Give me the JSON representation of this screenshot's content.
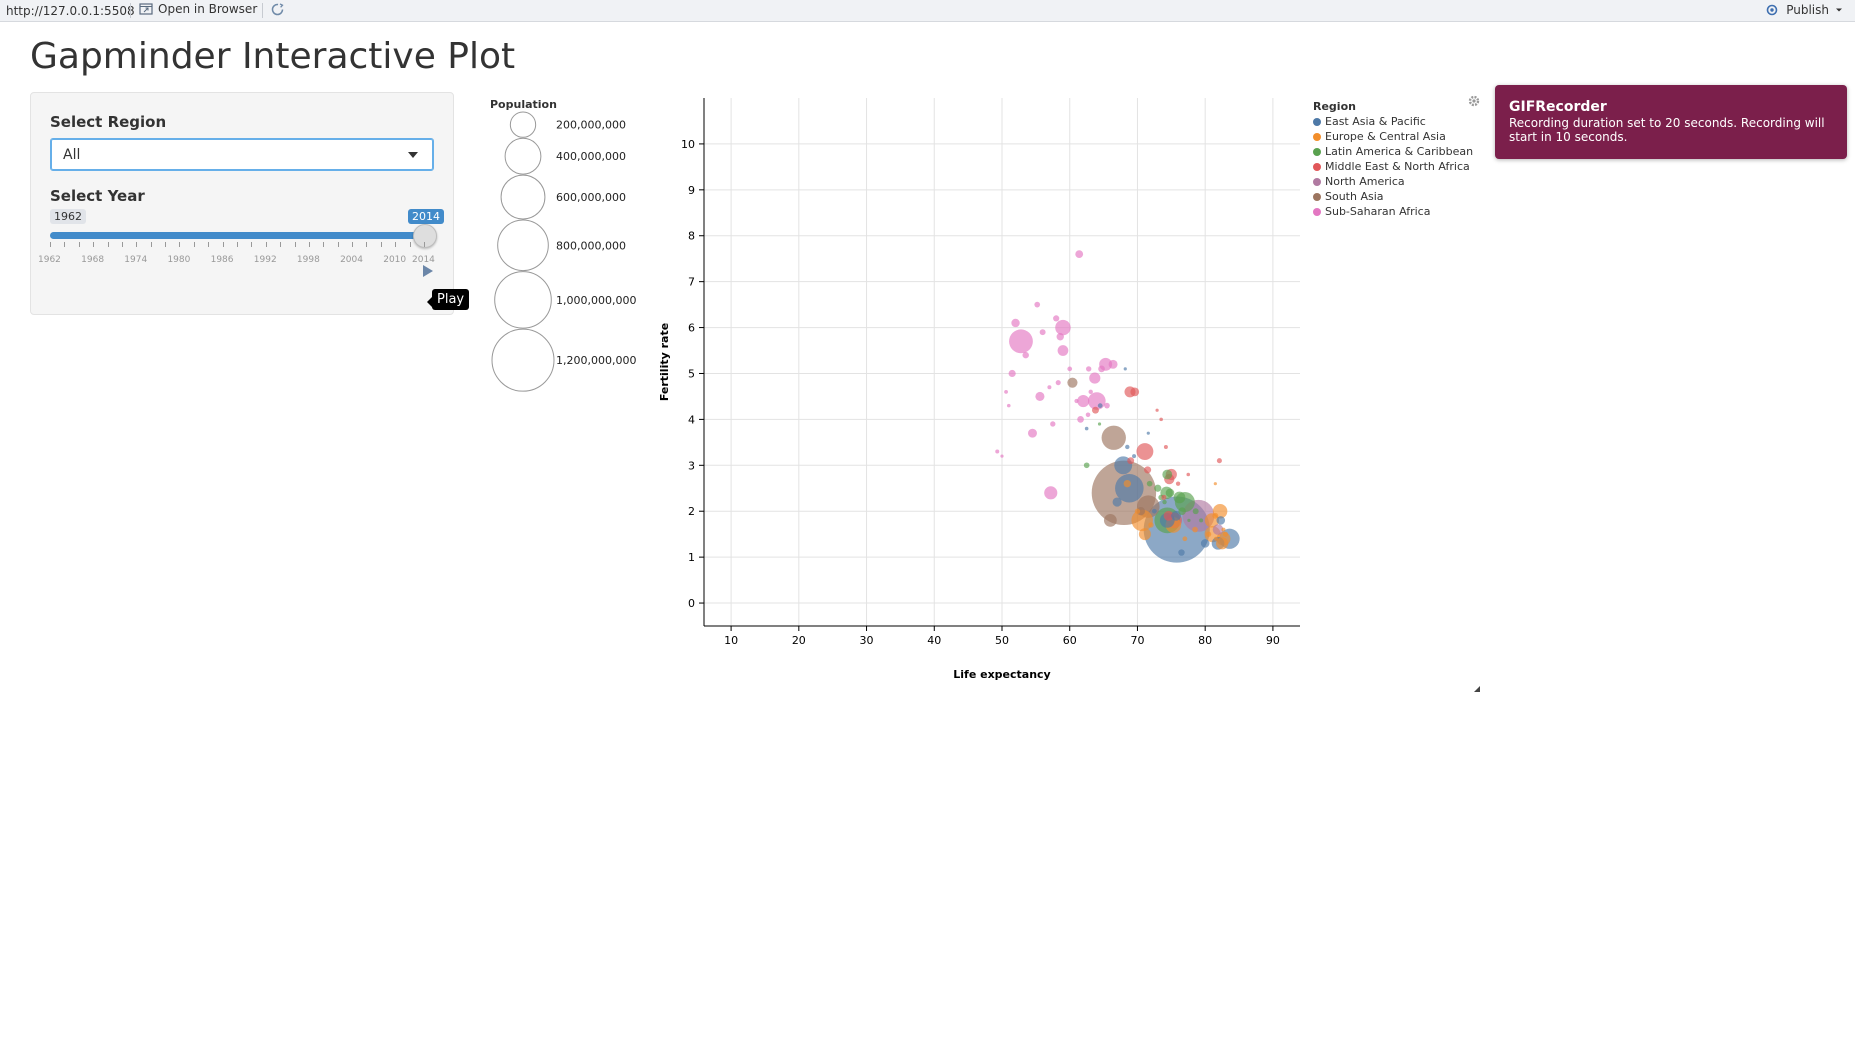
{
  "viewer": {
    "url": "http://127.0.0.1:5508",
    "open_in_browser": "Open in Browser",
    "publish": "Publish"
  },
  "app": {
    "title": "Gapminder Interactive Plot"
  },
  "controls": {
    "region_label": "Select Region",
    "region_value": "All",
    "year_label": "Select Year",
    "year_min": "1962",
    "year_max": "2014",
    "year_value": 2014,
    "year_ticks": [
      "1962",
      "1968",
      "1974",
      "1980",
      "1986",
      "1992",
      "1998",
      "2004",
      "2010",
      "2014"
    ],
    "play_tooltip": "Play"
  },
  "population_legend": {
    "title": "Population",
    "items": [
      {
        "label": "200,000,000",
        "value": 200000000
      },
      {
        "label": "400,000,000",
        "value": 400000000
      },
      {
        "label": "600,000,000",
        "value": 600000000
      },
      {
        "label": "800,000,000",
        "value": 800000000
      },
      {
        "label": "1,000,000,000",
        "value": 1000000000
      },
      {
        "label": "1,200,000,000",
        "value": 1200000000
      }
    ]
  },
  "region_legend": {
    "title": "Region",
    "items": [
      {
        "label": "East Asia & Pacific",
        "color": "#4e79a7"
      },
      {
        "label": "Europe & Central Asia",
        "color": "#f28e2b"
      },
      {
        "label": "Latin America & Caribbean",
        "color": "#59a14f"
      },
      {
        "label": "Middle East & North Africa",
        "color": "#e15759"
      },
      {
        "label": "North America",
        "color": "#b07aa1"
      },
      {
        "label": "South Asia",
        "color": "#9c755f"
      },
      {
        "label": "Sub-Saharan Africa",
        "color": "#e377c2"
      }
    ]
  },
  "toast": {
    "title": "GIFRecorder",
    "message": "Recording duration set to 20 seconds. Recording will start in 10 seconds."
  },
  "chart_data": {
    "type": "scatter",
    "xlabel": "Life expectancy",
    "ylabel": "Fertility rate",
    "xlim": [
      6,
      94
    ],
    "ylim": [
      -0.5,
      11
    ],
    "xticks": [
      10,
      20,
      30,
      40,
      50,
      60,
      70,
      80,
      90
    ],
    "yticks": [
      0,
      1,
      2,
      3,
      4,
      5,
      6,
      7,
      8,
      9,
      10
    ],
    "grid": true,
    "size_legend": "Population",
    "color_legend": "Region",
    "points": [
      {
        "x": 75.8,
        "y": 1.6,
        "pop": 1364000000,
        "region": "East Asia & Pacific"
      },
      {
        "x": 68.0,
        "y": 2.4,
        "pop": 1295000000,
        "region": "South Asia"
      },
      {
        "x": 68.8,
        "y": 2.5,
        "pop": 254000000,
        "region": "East Asia & Pacific"
      },
      {
        "x": 79.0,
        "y": 1.9,
        "pop": 319000000,
        "region": "North America"
      },
      {
        "x": 66.5,
        "y": 3.6,
        "pop": 185000000,
        "region": "South Asia"
      },
      {
        "x": 52.8,
        "y": 5.7,
        "pop": 177000000,
        "region": "Sub-Saharan Africa"
      },
      {
        "x": 74.4,
        "y": 1.8,
        "pop": 206000000,
        "region": "Latin America & Caribbean"
      },
      {
        "x": 70.7,
        "y": 1.8,
        "pop": 144000000,
        "region": "Europe & Central Asia"
      },
      {
        "x": 83.6,
        "y": 1.4,
        "pop": 127000000,
        "region": "East Asia & Pacific"
      },
      {
        "x": 71.6,
        "y": 2.1,
        "pop": 159000000,
        "region": "South Asia"
      },
      {
        "x": 77.0,
        "y": 2.2,
        "pop": 125000000,
        "region": "Latin America & Caribbean"
      },
      {
        "x": 64.0,
        "y": 4.4,
        "pop": 97000000,
        "region": "Sub-Saharan Africa"
      },
      {
        "x": 67.9,
        "y": 3.0,
        "pop": 100000000,
        "region": "East Asia & Pacific"
      },
      {
        "x": 71.1,
        "y": 3.3,
        "pop": 89000000,
        "region": "Middle East & North Africa"
      },
      {
        "x": 75.3,
        "y": 1.7,
        "pop": 77000000,
        "region": "Europe & Central Asia"
      },
      {
        "x": 81.1,
        "y": 1.5,
        "pop": 81000000,
        "region": "Europe & Central Asia"
      },
      {
        "x": 75.4,
        "y": 1.8,
        "pop": 78000000,
        "region": "Middle East & North Africa"
      },
      {
        "x": 59.0,
        "y": 6.0,
        "pop": 75000000,
        "region": "Sub-Saharan Africa"
      },
      {
        "x": 74.4,
        "y": 1.8,
        "pop": 68000000,
        "region": "East Asia & Pacific"
      },
      {
        "x": 82.2,
        "y": 2.0,
        "pop": 66000000,
        "region": "Europe & Central Asia"
      },
      {
        "x": 81.0,
        "y": 1.8,
        "pop": 64000000,
        "region": "Europe & Central Asia"
      },
      {
        "x": 82.7,
        "y": 1.4,
        "pop": 60000000,
        "region": "Europe & Central Asia"
      },
      {
        "x": 57.2,
        "y": 2.4,
        "pop": 54000000,
        "region": "Sub-Saharan Africa"
      },
      {
        "x": 65.3,
        "y": 5.2,
        "pop": 52000000,
        "region": "Sub-Saharan Africa"
      },
      {
        "x": 66.0,
        "y": 1.8,
        "pop": 51000000,
        "region": "South Asia"
      },
      {
        "x": 81.9,
        "y": 1.3,
        "pop": 50000000,
        "region": "East Asia & Pacific"
      },
      {
        "x": 62.0,
        "y": 4.4,
        "pop": 46000000,
        "region": "Sub-Saharan Africa"
      },
      {
        "x": 71.1,
        "y": 1.5,
        "pop": 45000000,
        "region": "Europe & Central Asia"
      },
      {
        "x": 74.3,
        "y": 2.4,
        "pop": 48000000,
        "region": "Latin America & Caribbean"
      },
      {
        "x": 76.2,
        "y": 2.3,
        "pop": 43000000,
        "region": "Latin America & Caribbean"
      },
      {
        "x": 82.5,
        "y": 1.3,
        "pop": 46000000,
        "region": "Europe & Central Asia"
      },
      {
        "x": 68.9,
        "y": 4.6,
        "pop": 38000000,
        "region": "Middle East & North Africa"
      },
      {
        "x": 75.0,
        "y": 2.8,
        "pop": 39000000,
        "region": "Middle East & North Africa"
      },
      {
        "x": 63.7,
        "y": 4.9,
        "pop": 39000000,
        "region": "Sub-Saharan Africa"
      },
      {
        "x": 55.6,
        "y": 4.5,
        "pop": 26000000,
        "region": "Sub-Saharan Africa"
      },
      {
        "x": 60.4,
        "y": 4.8,
        "pop": 32000000,
        "region": "South Asia"
      },
      {
        "x": 74.7,
        "y": 2.7,
        "pop": 33000000,
        "region": "Middle East & North Africa"
      },
      {
        "x": 81.9,
        "y": 1.6,
        "pop": 35000000,
        "region": "North America"
      },
      {
        "x": 59.0,
        "y": 5.5,
        "pop": 36000000,
        "region": "Sub-Saharan Africa"
      },
      {
        "x": 75.7,
        "y": 1.9,
        "pop": 30000000,
        "region": "East Asia & Pacific"
      },
      {
        "x": 82.3,
        "y": 1.8,
        "pop": 23000000,
        "region": "East Asia & Pacific"
      },
      {
        "x": 74.4,
        "y": 2.8,
        "pop": 30000000,
        "region": "Latin America & Caribbean"
      },
      {
        "x": 74.6,
        "y": 1.9,
        "pop": 31000000,
        "region": "Middle East & North Africa"
      },
      {
        "x": 74.8,
        "y": 2.4,
        "pop": 23000000,
        "region": "Latin America & Caribbean"
      },
      {
        "x": 66.4,
        "y": 5.2,
        "pop": 25000000,
        "region": "Sub-Saharan Africa"
      },
      {
        "x": 54.5,
        "y": 3.7,
        "pop": 25000000,
        "region": "Sub-Saharan Africa"
      },
      {
        "x": 52.0,
        "y": 6.1,
        "pop": 22000000,
        "region": "Sub-Saharan Africa"
      },
      {
        "x": 70.5,
        "y": 2.0,
        "pop": 22000000,
        "region": "South Asia"
      },
      {
        "x": 80.0,
        "y": 1.3,
        "pop": 23000000,
        "region": "East Asia & Pacific"
      },
      {
        "x": 82.1,
        "y": 3.1,
        "pop": 8000000,
        "region": "Middle East & North Africa"
      },
      {
        "x": 61.4,
        "y": 7.6,
        "pop": 19000000,
        "region": "Sub-Saharan Africa"
      },
      {
        "x": 58.6,
        "y": 5.8,
        "pop": 17000000,
        "region": "Sub-Saharan Africa"
      },
      {
        "x": 51.5,
        "y": 5.0,
        "pop": 16000000,
        "region": "Sub-Saharan Africa"
      },
      {
        "x": 61.6,
        "y": 4.0,
        "pop": 14000000,
        "region": "Sub-Saharan Africa"
      },
      {
        "x": 55.2,
        "y": 6.5,
        "pop": 10000000,
        "region": "Sub-Saharan Africa"
      },
      {
        "x": 58.0,
        "y": 6.2,
        "pop": 12000000,
        "region": "Sub-Saharan Africa"
      },
      {
        "x": 49.3,
        "y": 3.3,
        "pop": 5000000,
        "region": "Sub-Saharan Africa"
      },
      {
        "x": 50.6,
        "y": 4.6,
        "pop": 4500000,
        "region": "Sub-Saharan Africa"
      },
      {
        "x": 51.0,
        "y": 4.3,
        "pop": 4000000,
        "region": "Sub-Saharan Africa"
      },
      {
        "x": 56.0,
        "y": 5.9,
        "pop": 11000000,
        "region": "Sub-Saharan Africa"
      },
      {
        "x": 57.5,
        "y": 3.9,
        "pop": 9000000,
        "region": "Sub-Saharan Africa"
      },
      {
        "x": 60.0,
        "y": 5.1,
        "pop": 7000000,
        "region": "Sub-Saharan Africa"
      },
      {
        "x": 62.8,
        "y": 5.1,
        "pop": 9000000,
        "region": "Sub-Saharan Africa"
      },
      {
        "x": 64.7,
        "y": 5.1,
        "pop": 14000000,
        "region": "Sub-Saharan Africa"
      },
      {
        "x": 57.0,
        "y": 4.7,
        "pop": 5000000,
        "region": "Sub-Saharan Africa"
      },
      {
        "x": 53.5,
        "y": 5.4,
        "pop": 13000000,
        "region": "Sub-Saharan Africa"
      },
      {
        "x": 50.0,
        "y": 3.2,
        "pop": 2500000,
        "region": "Sub-Saharan Africa"
      },
      {
        "x": 63.1,
        "y": 4.6,
        "pop": 6000000,
        "region": "Sub-Saharan Africa"
      },
      {
        "x": 58.3,
        "y": 4.8,
        "pop": 8000000,
        "region": "Sub-Saharan Africa"
      },
      {
        "x": 62.7,
        "y": 4.1,
        "pop": 6500000,
        "region": "Sub-Saharan Africa"
      },
      {
        "x": 61.0,
        "y": 4.4,
        "pop": 5500000,
        "region": "Sub-Saharan Africa"
      },
      {
        "x": 65.5,
        "y": 4.3,
        "pop": 10000000,
        "region": "Sub-Saharan Africa"
      },
      {
        "x": 69.6,
        "y": 4.6,
        "pop": 24000000,
        "region": "Middle East & North Africa"
      },
      {
        "x": 63.8,
        "y": 4.2,
        "pop": 15000000,
        "region": "Middle East & North Africa"
      },
      {
        "x": 72.9,
        "y": 4.2,
        "pop": 3000000,
        "region": "Middle East & North Africa"
      },
      {
        "x": 73.5,
        "y": 4.0,
        "pop": 4000000,
        "region": "Middle East & North Africa"
      },
      {
        "x": 71.5,
        "y": 2.9,
        "pop": 16000000,
        "region": "Middle East & North Africa"
      },
      {
        "x": 74.2,
        "y": 3.4,
        "pop": 5000000,
        "region": "Middle East & North Africa"
      },
      {
        "x": 73.9,
        "y": 2.3,
        "pop": 8000000,
        "region": "Middle East & North Africa"
      },
      {
        "x": 77.5,
        "y": 2.8,
        "pop": 4000000,
        "region": "Middle East & North Africa"
      },
      {
        "x": 76.0,
        "y": 2.6,
        "pop": 6000000,
        "region": "Middle East & North Africa"
      },
      {
        "x": 69.0,
        "y": 3.1,
        "pop": 15000000,
        "region": "Middle East & North Africa"
      },
      {
        "x": 64.4,
        "y": 3.9,
        "pop": 3000000,
        "region": "Latin America & Caribbean"
      },
      {
        "x": 62.5,
        "y": 3.0,
        "pop": 10000000,
        "region": "Latin America & Caribbean"
      },
      {
        "x": 71.8,
        "y": 2.6,
        "pop": 10000000,
        "region": "Latin America & Caribbean"
      },
      {
        "x": 73.0,
        "y": 2.5,
        "pop": 16000000,
        "region": "Latin America & Caribbean"
      },
      {
        "x": 73.5,
        "y": 2.3,
        "pop": 10000000,
        "region": "Latin America & Caribbean"
      },
      {
        "x": 76.6,
        "y": 2.0,
        "pop": 18000000,
        "region": "Latin America & Caribbean"
      },
      {
        "x": 79.4,
        "y": 1.8,
        "pop": 5000000,
        "region": "Latin America & Caribbean"
      },
      {
        "x": 74.0,
        "y": 2.2,
        "pop": 6000000,
        "region": "Latin America & Caribbean"
      },
      {
        "x": 68.5,
        "y": 3.4,
        "pop": 6000000,
        "region": "East Asia & Pacific"
      },
      {
        "x": 69.5,
        "y": 3.2,
        "pop": 5000000,
        "region": "East Asia & Pacific"
      },
      {
        "x": 67.0,
        "y": 2.2,
        "pop": 26000000,
        "region": "East Asia & Pacific"
      },
      {
        "x": 72.5,
        "y": 2.0,
        "pop": 7000000,
        "region": "East Asia & Pacific"
      },
      {
        "x": 64.5,
        "y": 4.3,
        "pop": 7000000,
        "region": "East Asia & Pacific"
      },
      {
        "x": 62.5,
        "y": 3.8,
        "pop": 4000000,
        "region": "East Asia & Pacific"
      },
      {
        "x": 68.2,
        "y": 5.1,
        "pop": 1500000,
        "region": "East Asia & Pacific"
      },
      {
        "x": 71.6,
        "y": 3.7,
        "pop": 1000000,
        "region": "East Asia & Pacific"
      },
      {
        "x": 76.5,
        "y": 1.1,
        "pop": 13000000,
        "region": "East Asia & Pacific"
      },
      {
        "x": 78.5,
        "y": 1.6,
        "pop": 10000000,
        "region": "Europe & Central Asia"
      },
      {
        "x": 80.5,
        "y": 1.5,
        "pop": 9000000,
        "region": "Europe & Central Asia"
      },
      {
        "x": 81.5,
        "y": 1.9,
        "pop": 11000000,
        "region": "Europe & Central Asia"
      },
      {
        "x": 83.0,
        "y": 1.5,
        "pop": 8000000,
        "region": "Europe & Central Asia"
      },
      {
        "x": 77.0,
        "y": 1.4,
        "pop": 7000000,
        "region": "Europe & Central Asia"
      },
      {
        "x": 72.0,
        "y": 1.7,
        "pop": 9000000,
        "region": "Europe & Central Asia"
      },
      {
        "x": 70.0,
        "y": 2.0,
        "pop": 9000000,
        "region": "Europe & Central Asia"
      },
      {
        "x": 68.5,
        "y": 2.6,
        "pop": 17000000,
        "region": "Europe & Central Asia"
      },
      {
        "x": 81.6,
        "y": 1.4,
        "pop": 5000000,
        "region": "Europe & Central Asia"
      },
      {
        "x": 81.5,
        "y": 2.6,
        "pop": 2000000,
        "region": "Europe & Central Asia"
      },
      {
        "x": 82.7,
        "y": 1.6,
        "pop": 5000000,
        "region": "Europe & Central Asia"
      },
      {
        "x": 77.6,
        "y": 1.8,
        "pop": 3000000,
        "region": "Latin America & Caribbean"
      },
      {
        "x": 78.6,
        "y": 2.0,
        "pop": 11000000,
        "region": "Latin America & Caribbean"
      }
    ]
  }
}
